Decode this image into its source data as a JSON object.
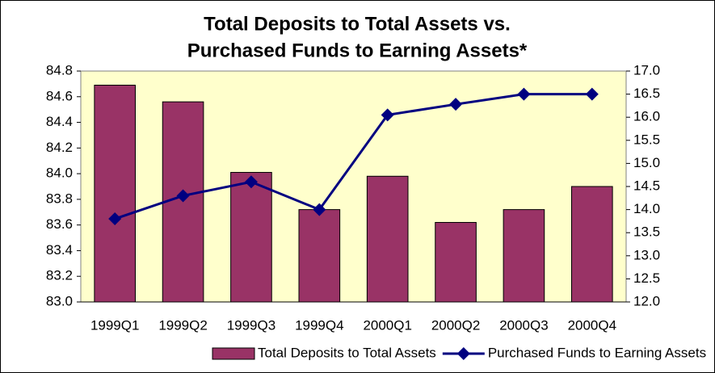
{
  "chart_data": {
    "type": "bar",
    "title": [
      "Total Deposits to Total Assets vs.",
      "Purchased Funds to Earning Assets*"
    ],
    "categories": [
      "1999Q1",
      "1999Q2",
      "1999Q3",
      "1999Q4",
      "2000Q1",
      "2000Q2",
      "2000Q3",
      "2000Q4"
    ],
    "series": [
      {
        "name": "Total Deposits to Total Assets",
        "type": "bar",
        "color": "#993366",
        "values": [
          84.69,
          84.56,
          84.01,
          83.72,
          83.98,
          83.62,
          83.72,
          83.9
        ]
      },
      {
        "name": "Purchased Funds to Earning Assets",
        "type": "line",
        "axis": "y2",
        "color": "#000080",
        "values": [
          13.8,
          14.3,
          14.6,
          14.0,
          16.05,
          16.28,
          16.5,
          16.5
        ]
      }
    ],
    "ylim": [
      83.0,
      84.8
    ],
    "yticks": [
      {
        "value": 83,
        "label": "83.0"
      },
      83.2,
      83.4,
      83.6,
      83.8,
      {
        "value": 84,
        "label": "84.0"
      },
      84.2,
      84.4,
      84.6,
      84.8
    ],
    "y2lim": [
      12.0,
      17.0
    ],
    "y2ticks": [
      {
        "value": 12,
        "label": "12.0"
      },
      12.5,
      {
        "value": 13,
        "label": "13.0"
      },
      13.5,
      {
        "value": 14,
        "label": "14.0"
      },
      14.5,
      {
        "value": 15,
        "label": "15.0"
      },
      15.5,
      {
        "value": 16,
        "label": "16.0"
      },
      16.5,
      {
        "value": 17,
        "label": "17.0"
      }
    ],
    "legend": "bottom",
    "plot_background": "#ffffcc"
  }
}
